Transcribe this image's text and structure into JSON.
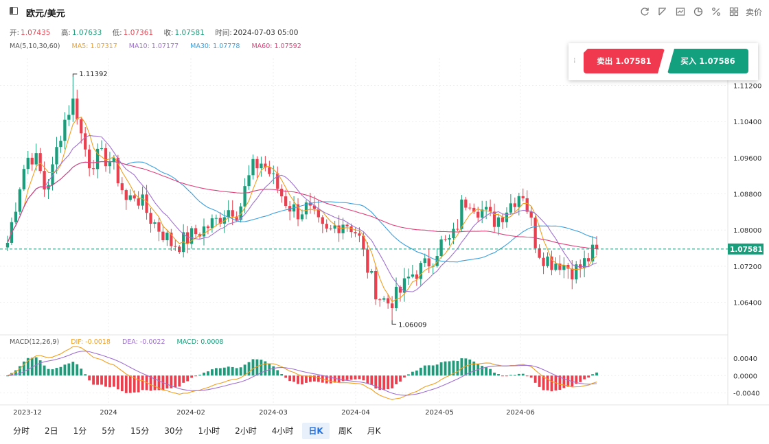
{
  "header": {
    "title": "欧元/美元",
    "tools": [
      "refresh-icon",
      "draw-icon",
      "indicator-icon",
      "pie-icon",
      "percent-icon",
      "grid-icon"
    ],
    "sell_price_label": "卖价"
  },
  "ohlc": {
    "open_label": "开:",
    "open": "1.07435",
    "high_label": "高:",
    "high": "1.07633",
    "low_label": "低:",
    "low": "1.07361",
    "close_label": "收:",
    "close": "1.07581",
    "time_label": "时间:",
    "time": "2024-07-03 05:00"
  },
  "ma_legend": {
    "title": "MA(5,10,30,60)",
    "ma5": "MA5: 1.07317",
    "ma10": "MA10: 1.07177",
    "ma30": "MA30: 1.07778",
    "ma60": "MA60: 1.07592"
  },
  "macd_legend": {
    "title": "MACD(12,26,9)",
    "dif": "DIF: -0.0018",
    "dea": "DEA: -0.0022",
    "macd": "MACD: 0.0008"
  },
  "trade": {
    "sell": "卖出 1.07581",
    "buy": "买入 1.07586"
  },
  "periods": [
    {
      "label": "分时",
      "active": false
    },
    {
      "label": "2日",
      "active": false
    },
    {
      "label": "1分",
      "active": false
    },
    {
      "label": "5分",
      "active": false
    },
    {
      "label": "15分",
      "active": false
    },
    {
      "label": "30分",
      "active": false
    },
    {
      "label": "1小时",
      "active": false
    },
    {
      "label": "2小时",
      "active": false
    },
    {
      "label": "4小时",
      "active": false
    },
    {
      "label": "日K",
      "active": true
    },
    {
      "label": "周K",
      "active": false
    },
    {
      "label": "月K",
      "active": false
    }
  ],
  "colors": {
    "up": "#1a9d7a",
    "down": "#e8404f",
    "ma5": "#f0a020",
    "ma10": "#a070d0",
    "ma30": "#3aa0e0",
    "ma60": "#e0407a",
    "price_line": "#1a9d7a"
  },
  "chart_data": {
    "type": "candlestick",
    "y_ticks": [
      "1.11200",
      "1.10400",
      "1.09600",
      "1.08800",
      "1.08000",
      "1.07200",
      "1.06400"
    ],
    "ylim": [
      1.0568,
      1.118
    ],
    "x_ticks": [
      "2023-12",
      "2024",
      "2024-02",
      "2024-03",
      "2024-04",
      "2024-05",
      "2024-06"
    ],
    "current_price_label": "1.07581",
    "current_price": 1.07581,
    "max_annotation": "1.11392",
    "max_value": 1.11392,
    "min_annotation": "1.06009",
    "min_value": 1.06009,
    "macd_ticks": [
      "0.0040",
      "0.0000",
      "-0.0040"
    ],
    "macd_ylim": [
      -0.0058,
      0.0062
    ],
    "anchors": [
      1.0772,
      1.085,
      1.093,
      1.097,
      1.095,
      1.089,
      1.093,
      1.101,
      1.106,
      1.109,
      1.1,
      1.095,
      1.096,
      1.096,
      1.095,
      1.091,
      1.086,
      1.088,
      1.086,
      1.083,
      1.081,
      1.079,
      1.077,
      1.077,
      1.078,
      1.079,
      1.08,
      1.081,
      1.082,
      1.084,
      1.085,
      1.084,
      1.09,
      1.094,
      1.095,
      1.093,
      1.09,
      1.087,
      1.085,
      1.084,
      1.085,
      1.083,
      1.08,
      1.079,
      1.081,
      1.082,
      1.081,
      1.079,
      1.073,
      1.068,
      1.065,
      1.064,
      1.065,
      1.067,
      1.07,
      1.071,
      1.072,
      1.074,
      1.077,
      1.077,
      1.079,
      1.086,
      1.087,
      1.085,
      1.084,
      1.082,
      1.083,
      1.085,
      1.087,
      1.089,
      1.083,
      1.076,
      1.074,
      1.073,
      1.073,
      1.072,
      1.071,
      1.072,
      1.074,
      1.0758
    ]
  }
}
